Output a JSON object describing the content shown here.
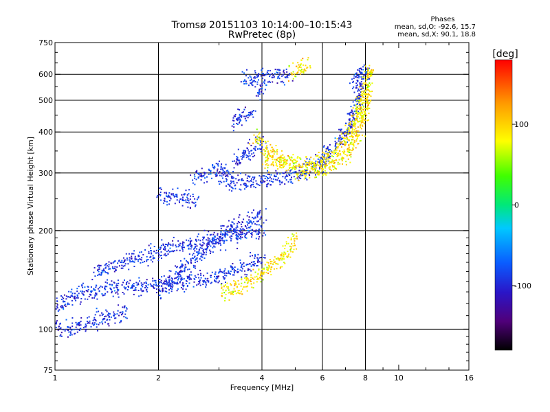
{
  "chart_data": {
    "type": "scatter",
    "title": "Tromsø 20151103 10:14:00–10:15:43",
    "subtitle": "RwPretec (8p)",
    "xlabel": "Frequency [MHz]",
    "ylabel": "Stationary phase Virtual Height [km]",
    "x_scale": "log",
    "y_scale": "log",
    "xlim": [
      1,
      16
    ],
    "ylim": [
      75,
      750
    ],
    "x_ticks": [
      1,
      2,
      4,
      6,
      8,
      10,
      16
    ],
    "x_tick_labels": [
      "1",
      "2",
      "4",
      "6",
      "8",
      "10",
      "16"
    ],
    "x_grid_lines": [
      2,
      4,
      6,
      8
    ],
    "y_ticks": [
      75,
      100,
      200,
      300,
      400,
      500,
      600,
      750
    ],
    "y_tick_labels": [
      "75",
      "100",
      "200",
      "300",
      "400",
      "500",
      "600",
      "750"
    ],
    "y_grid_lines": [
      100,
      200,
      300,
      400,
      500,
      600
    ],
    "grid": true,
    "phase_stats": {
      "title": "Phases",
      "line_o": "mean, sd,O: -92.6, 15.7",
      "line_x": "mean, sd,X:  90.1, 18.8"
    },
    "colorbar": {
      "label": "[deg]",
      "range": [
        -180,
        180
      ],
      "ticks": [
        100,
        0,
        -100
      ],
      "tick_labels": [
        "100",
        "0",
        "-100"
      ],
      "placement": "right"
    },
    "series": [
      {
        "mode": "O",
        "mean_phase": -92.6,
        "sd_phase": 15.7,
        "traces": [
          {
            "f": [
              1.0,
              1.1,
              1.2,
              1.35,
              1.5,
              1.7,
              2.0,
              2.3,
              2.7,
              3.0,
              3.4,
              3.8,
              4.0
            ],
            "h": [
              117,
              125,
              130,
              133,
              135,
              136,
              137,
              139,
              142,
              146,
              152,
              160,
              168
            ]
          },
          {
            "f": [
              1.0,
              1.1,
              1.25,
              1.4,
              1.6
            ],
            "h": [
              100,
              101,
              106,
              109,
              112
            ]
          },
          {
            "f": [
              1.3,
              1.6,
              1.9,
              2.2,
              2.6,
              3.0,
              3.5,
              4.0
            ],
            "h": [
              150,
              162,
              170,
              178,
              185,
              190,
              195,
              200
            ]
          },
          {
            "f": [
              2.0,
              2.3,
              2.7,
              3.2,
              3.6,
              4.0
            ],
            "h": [
              130,
              150,
              175,
              200,
              215,
              225
            ]
          },
          {
            "f": [
              2.0,
              2.3,
              2.6
            ],
            "h": [
              260,
              252,
              248
            ]
          },
          {
            "f": [
              2.5,
              2.8,
              3.0,
              3.2
            ],
            "h": [
              290,
              300,
              310,
              300
            ]
          },
          {
            "f": [
              3.0,
              3.5,
              4.0,
              4.5,
              5.0,
              5.5,
              6.0,
              6.5,
              7.0,
              7.5,
              8.0
            ],
            "h": [
              285,
              282,
              284,
              290,
              300,
              312,
              330,
              360,
              400,
              480,
              600
            ]
          },
          {
            "f": [
              3.3,
              3.6,
              4.0
            ],
            "h": [
              320,
              345,
              370
            ]
          },
          {
            "f": [
              3.3,
              3.5,
              3.8
            ],
            "h": [
              430,
              455,
              460
            ]
          },
          {
            "f": [
              3.5,
              4.0,
              4.4,
              4.8
            ],
            "h": [
              580,
              595,
              600,
              590
            ]
          },
          {
            "f": [
              3.9,
              4.0
            ],
            "h": [
              520,
              560
            ]
          },
          {
            "f": [
              7.3,
              7.6,
              7.9,
              8.2
            ],
            "h": [
              560,
              600,
              620,
              610
            ]
          }
        ]
      },
      {
        "mode": "X",
        "mean_phase": 90.1,
        "sd_phase": 18.8,
        "traces": [
          {
            "f": [
              3.0,
              3.3,
              3.6,
              4.0,
              4.5,
              5.0
            ],
            "h": [
              130,
              133,
              138,
              148,
              165,
              190
            ]
          },
          {
            "f": [
              4.0,
              4.3,
              4.6,
              5.0,
              5.5,
              6.0,
              6.5,
              7.0,
              7.5,
              8.0
            ],
            "h": [
              330,
              325,
              322,
              320,
              322,
              330,
              345,
              380,
              440,
              560
            ]
          },
          {
            "f": [
              3.8,
              4.0,
              4.3,
              4.6,
              5.0
            ],
            "h": [
              390,
              370,
              345,
              330,
              320
            ]
          },
          {
            "f": [
              5.0,
              6.0,
              7.0,
              7.5,
              8.0,
              8.2
            ],
            "h": [
              300,
              310,
              340,
              380,
              480,
              640
            ]
          },
          {
            "f": [
              4.8,
              5.2,
              5.5
            ],
            "h": [
              600,
              630,
              650
            ]
          }
        ]
      }
    ]
  }
}
